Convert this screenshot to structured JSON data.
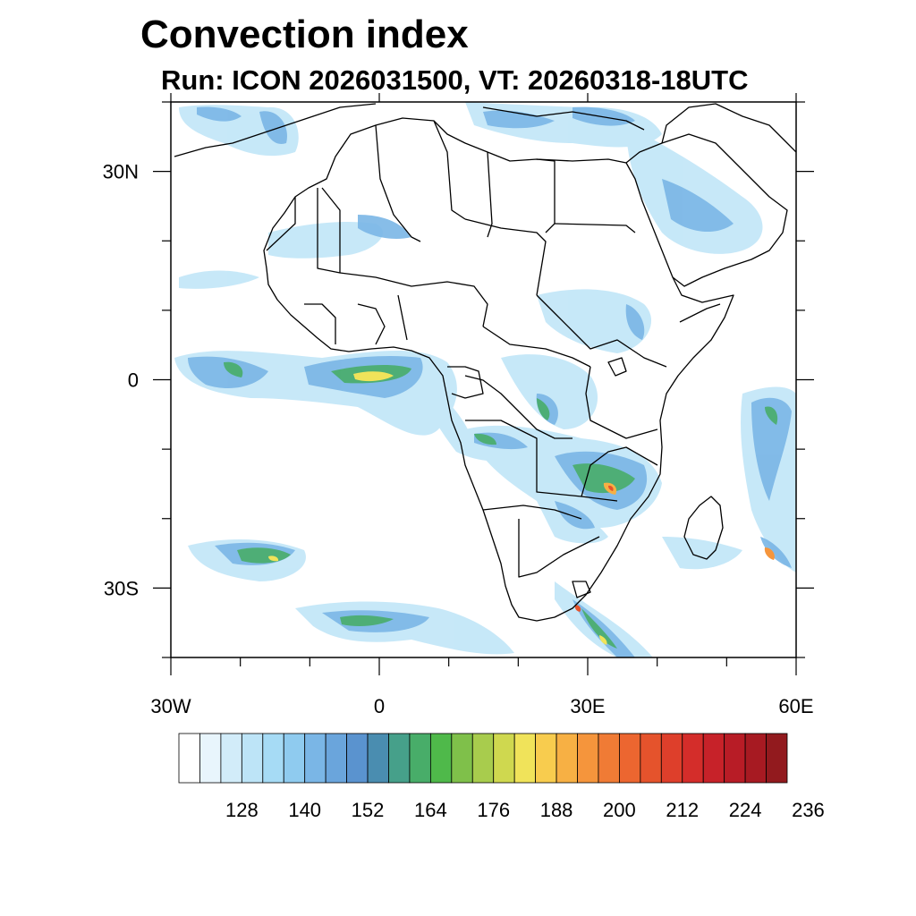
{
  "title": "Convection index",
  "subtitle": "Run: ICON 2026031500,  VT: 20260318-18UTC",
  "map": {
    "lon_range": [
      -30,
      60
    ],
    "lat_range": [
      -40,
      40
    ],
    "lat_ticks": [
      {
        "value": 30,
        "label": "30N"
      },
      {
        "value": 0,
        "label": "0"
      },
      {
        "value": -30,
        "label": "30S"
      }
    ],
    "lon_ticks": [
      {
        "value": -30,
        "label": "30W"
      },
      {
        "value": 0,
        "label": "0"
      },
      {
        "value": 30,
        "label": "30E"
      },
      {
        "value": 60,
        "label": "60E"
      }
    ]
  },
  "colorbar": {
    "colors": [
      "#ffffff",
      "#e8f5fc",
      "#d2ecf9",
      "#bde4f7",
      "#a6dbf5",
      "#8fcbef",
      "#7ab6e6",
      "#6aa5dc",
      "#5a93cf",
      "#4a8db0",
      "#46a08a",
      "#48ad69",
      "#4fb94a",
      "#7fc04a",
      "#a8cc4d",
      "#cfd84f",
      "#f0e35a",
      "#f8cc4e",
      "#f7b044",
      "#f5953c",
      "#f07b35",
      "#ec6630",
      "#e5532c",
      "#de3f2b",
      "#d42d2a",
      "#c72229",
      "#b81c26",
      "#a71a22",
      "#921a1e"
    ],
    "labels": [
      "128",
      "140",
      "152",
      "164",
      "176",
      "188",
      "200",
      "212",
      "224",
      "236"
    ]
  }
}
